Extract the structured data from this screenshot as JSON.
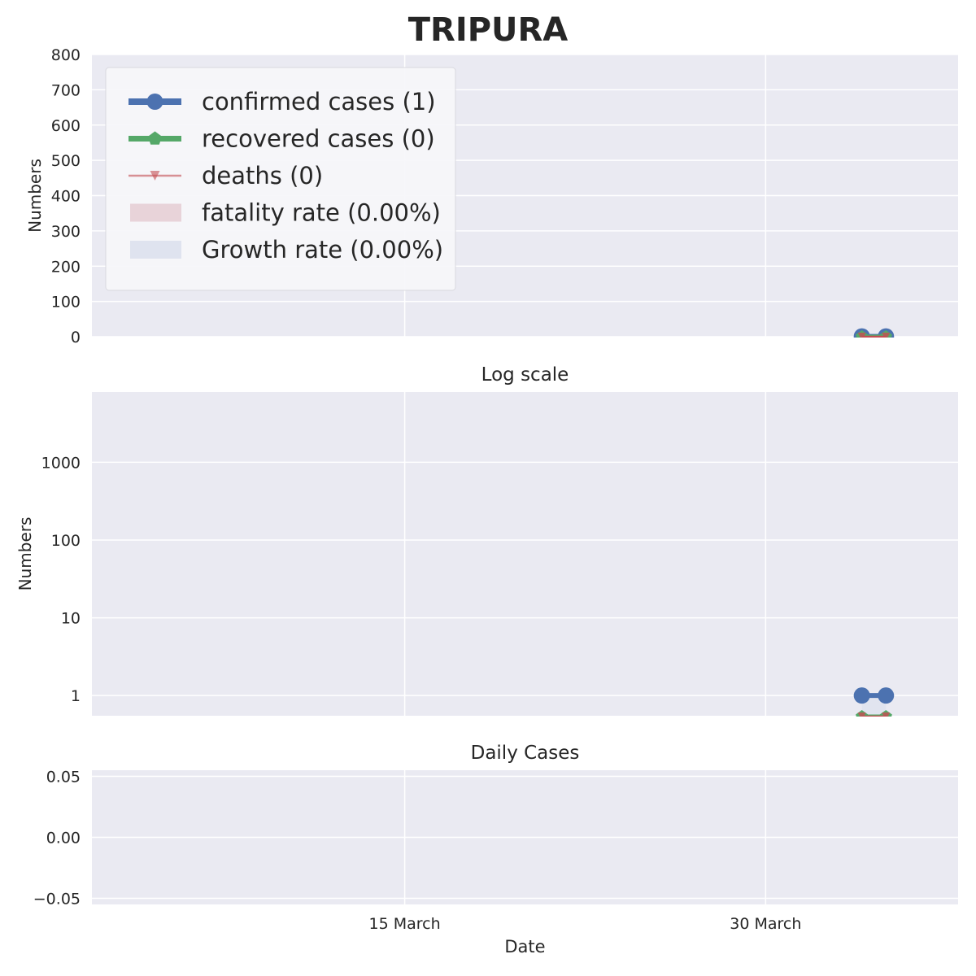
{
  "figure": {
    "title": "TRIPURA",
    "colors": {
      "background": "#eaeaf2",
      "grid": "#ffffff",
      "confirmed": "#4c72b0",
      "recovered": "#55a868",
      "deaths": "#c44e52",
      "fatality_fill": "#e8d3d9",
      "growth_fill": "#dfe3ef"
    }
  },
  "chart_data": [
    {
      "type": "line",
      "panel": "main",
      "title": "",
      "xlabel": "",
      "ylabel": "Numbers",
      "yscale": "linear",
      "ylim": [
        0,
        800
      ],
      "yticks": [
        0,
        100,
        200,
        300,
        400,
        500,
        600,
        700,
        800
      ],
      "ytick_labels": [
        "0",
        "100",
        "200",
        "300",
        "400",
        "500",
        "600",
        "700",
        "800"
      ],
      "xlim": [
        "2020-03-02",
        "2020-04-07"
      ],
      "xticks": [
        "2020-03-15",
        "2020-03-30"
      ],
      "grid": true,
      "legend_position": "top-left",
      "legend": [
        {
          "key": "confirmed",
          "label": "confirmed cases (1)",
          "kind": "line-circle"
        },
        {
          "key": "recovered",
          "label": "recovered cases (0)",
          "kind": "line-pentagon"
        },
        {
          "key": "deaths",
          "label": "deaths (0)",
          "kind": "line-triangle"
        },
        {
          "key": "fatality_fill",
          "label": "fatality rate (0.00%)",
          "kind": "patch"
        },
        {
          "key": "growth_fill",
          "label": "Growth rate (0.00%)",
          "kind": "patch"
        }
      ],
      "series": [
        {
          "key": "confirmed",
          "x": [
            "2020-04-03",
            "2020-04-04"
          ],
          "values": [
            1,
            1
          ]
        },
        {
          "key": "recovered",
          "x": [
            "2020-04-03",
            "2020-04-04"
          ],
          "values": [
            0,
            0
          ]
        },
        {
          "key": "deaths",
          "x": [
            "2020-04-03",
            "2020-04-04"
          ],
          "values": [
            0,
            0
          ]
        }
      ]
    },
    {
      "type": "line",
      "panel": "log",
      "title": "Log scale",
      "xlabel": "",
      "ylabel": "Numbers",
      "yscale": "log",
      "ylim": [
        0.55,
        8000
      ],
      "yticks": [
        1,
        10,
        100,
        1000
      ],
      "ytick_labels": [
        "1",
        "10",
        "100",
        "1000"
      ],
      "xlim": [
        "2020-03-02",
        "2020-04-07"
      ],
      "xticks": [
        "2020-03-15",
        "2020-03-30"
      ],
      "grid": true,
      "series": [
        {
          "key": "confirmed",
          "x": [
            "2020-04-03",
            "2020-04-04"
          ],
          "values": [
            1,
            1
          ]
        },
        {
          "key": "recovered",
          "x": [
            "2020-04-03",
            "2020-04-04"
          ],
          "values": [
            0,
            0
          ]
        },
        {
          "key": "deaths",
          "x": [
            "2020-04-03",
            "2020-04-04"
          ],
          "values": [
            0,
            0
          ]
        }
      ]
    },
    {
      "type": "line",
      "panel": "daily",
      "title": "Daily Cases",
      "xlabel": "Date",
      "ylabel": "",
      "yscale": "linear",
      "ylim": [
        -0.055,
        0.055
      ],
      "yticks": [
        -0.05,
        0.0,
        0.05
      ],
      "ytick_labels": [
        "−0.05",
        "0.00",
        "0.05"
      ],
      "xlim": [
        "2020-03-02",
        "2020-04-07"
      ],
      "xticks": [
        "2020-03-15",
        "2020-03-30"
      ],
      "xtick_labels": [
        "15 March",
        "30 March"
      ],
      "grid": true,
      "series": []
    }
  ]
}
